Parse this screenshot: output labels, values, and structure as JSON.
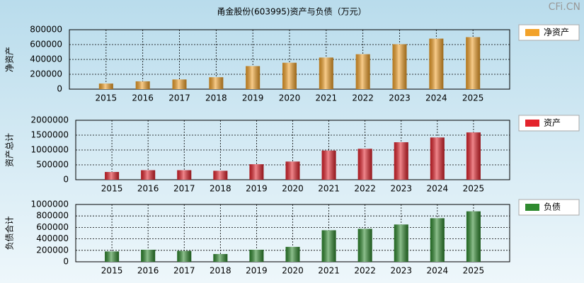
{
  "title": "甬金股份(603995)资产与负债（万元）",
  "watermark": "CFi.CN",
  "chart_data": [
    {
      "type": "bar",
      "ylabel": "净资产",
      "categories": [
        "2015",
        "2016",
        "2017",
        "2018",
        "2019",
        "2020",
        "2021",
        "2022",
        "2023",
        "2024",
        "2025"
      ],
      "series": [
        {
          "name": "净资产",
          "color": "#f2a22a",
          "values": [
            75000,
            105000,
            130000,
            160000,
            310000,
            355000,
            425000,
            470000,
            605000,
            680000,
            700000
          ]
        }
      ],
      "ylim": [
        0,
        800000
      ],
      "yticks": [
        0,
        200000,
        400000,
        600000,
        800000
      ],
      "grid": true
    },
    {
      "type": "bar",
      "ylabel": "资产总计",
      "categories": [
        "2015",
        "2016",
        "2017",
        "2018",
        "2019",
        "2020",
        "2021",
        "2022",
        "2023",
        "2024",
        "2025"
      ],
      "series": [
        {
          "name": "资产",
          "color": "#e3232c",
          "values": [
            260000,
            320000,
            320000,
            300000,
            520000,
            610000,
            980000,
            1040000,
            1260000,
            1420000,
            1590000
          ]
        }
      ],
      "ylim": [
        0,
        2000000
      ],
      "yticks": [
        0,
        500000,
        1000000,
        1500000,
        2000000
      ],
      "grid": true
    },
    {
      "type": "bar",
      "ylabel": "负债合计",
      "categories": [
        "2015",
        "2016",
        "2017",
        "2018",
        "2019",
        "2020",
        "2021",
        "2022",
        "2023",
        "2024",
        "2025"
      ],
      "series": [
        {
          "name": "负债",
          "color": "#2f8a2f",
          "values": [
            180000,
            210000,
            190000,
            135000,
            210000,
            260000,
            550000,
            575000,
            650000,
            760000,
            880000
          ]
        }
      ],
      "ylim": [
        0,
        1000000
      ],
      "yticks": [
        0,
        200000,
        400000,
        600000,
        800000,
        1000000
      ],
      "grid": true
    }
  ]
}
